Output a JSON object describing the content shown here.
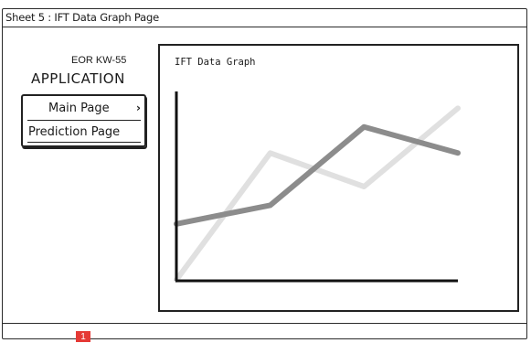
{
  "sheet": {
    "title": "Sheet 5 : IFT Data Graph Page"
  },
  "app": {
    "subtitle": "EOR KW-55",
    "title": "APPLICATION"
  },
  "nav": {
    "items": [
      {
        "label": "Main Page",
        "icon": "chevron-right-icon"
      },
      {
        "label": "Prediction Page"
      }
    ]
  },
  "graph": {
    "title": "IFT Data Graph"
  },
  "badge": {
    "label": "1"
  },
  "colors": {
    "series_dark": "#8c8c8c",
    "series_light": "#e0e0e0",
    "badge": "#e53935"
  },
  "chart_data": {
    "type": "line",
    "title": "IFT Data Graph",
    "xlabel": "",
    "ylabel": "",
    "x": [
      0,
      1,
      2,
      3
    ],
    "series": [
      {
        "values": [
          0.3,
          0.4,
          0.82,
          0.68
        ]
      },
      {
        "values": [
          0.0,
          0.68,
          0.5,
          0.92
        ]
      }
    ],
    "xlim": [
      0,
      3
    ],
    "ylim": [
      0,
      1
    ],
    "grid": false
  }
}
